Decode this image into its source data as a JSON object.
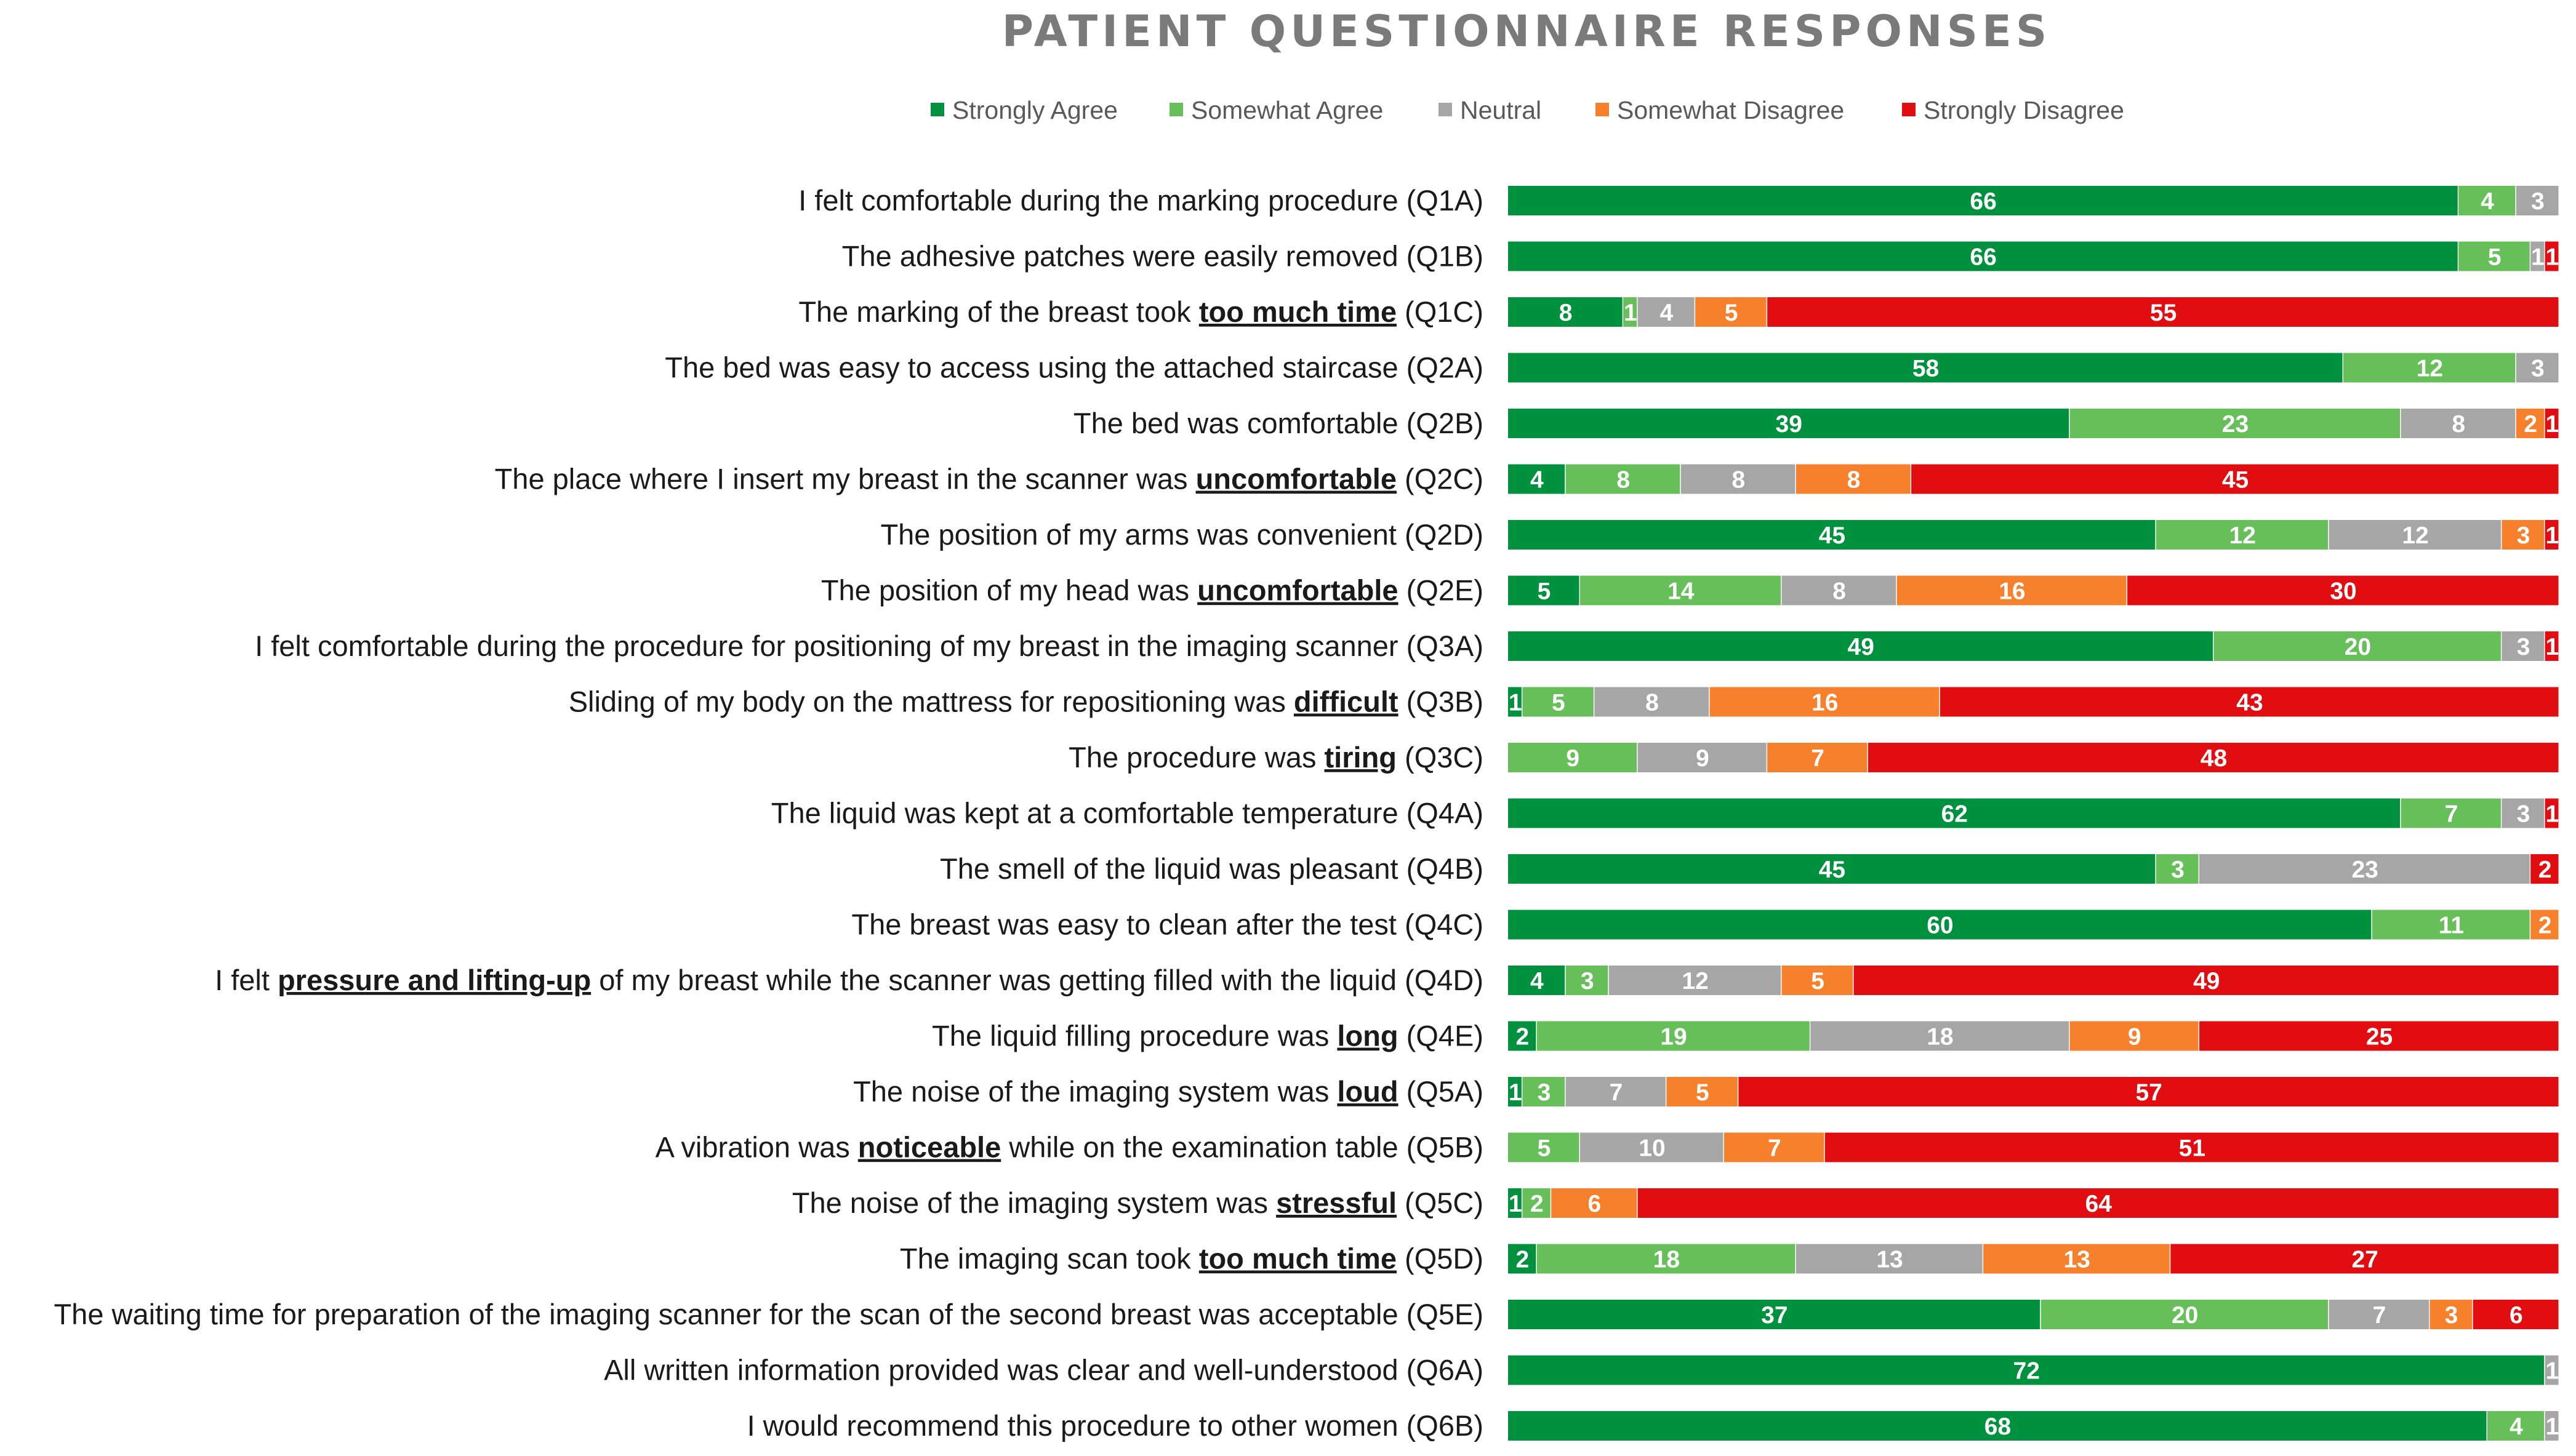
{
  "chart_data": {
    "type": "bar",
    "orientation": "horizontal",
    "stacked": true,
    "title": "PATIENT QUESTIONNAIRE RESPONSES",
    "xlabel": "",
    "ylabel": "",
    "legend_position": "top",
    "grid": false,
    "series": [
      {
        "name": "Strongly Agree",
        "color": "#00913f"
      },
      {
        "name": "Somewhat Agree",
        "color": "#67bf5a"
      },
      {
        "name": "Neutral",
        "color": "#a6a6a6"
      },
      {
        "name": "Somewhat Disagree",
        "color": "#f6802b"
      },
      {
        "name": "Strongly Disagree",
        "color": "#e20d11"
      }
    ],
    "categories": [
      {
        "parts": [
          {
            "t": "I felt comfortable during the marking procedure (Q1A)"
          }
        ],
        "values": [
          66,
          4,
          3,
          0,
          0
        ]
      },
      {
        "parts": [
          {
            "t": "The adhesive patches were easily removed (Q1B)"
          }
        ],
        "values": [
          66,
          5,
          1,
          0,
          1
        ]
      },
      {
        "parts": [
          {
            "t": "The marking of the breast took "
          },
          {
            "t": "too much time",
            "b": true
          },
          {
            "t": " (Q1C)"
          }
        ],
        "values": [
          8,
          1,
          4,
          5,
          55
        ]
      },
      {
        "parts": [
          {
            "t": "The bed was easy to access using the attached staircase (Q2A)"
          }
        ],
        "values": [
          58,
          12,
          3,
          0,
          0
        ]
      },
      {
        "parts": [
          {
            "t": "The bed was comfortable (Q2B)"
          }
        ],
        "values": [
          39,
          23,
          8,
          2,
          1
        ]
      },
      {
        "parts": [
          {
            "t": "The place where I insert my breast in the scanner was "
          },
          {
            "t": "uncomfortable",
            "b": true
          },
          {
            "t": " (Q2C)"
          }
        ],
        "values": [
          4,
          8,
          8,
          8,
          45
        ]
      },
      {
        "parts": [
          {
            "t": "The position of my arms was convenient (Q2D)"
          }
        ],
        "values": [
          45,
          12,
          12,
          3,
          1
        ]
      },
      {
        "parts": [
          {
            "t": "The position of my head was "
          },
          {
            "t": "uncomfortable",
            "b": true
          },
          {
            "t": " (Q2E)"
          }
        ],
        "values": [
          5,
          14,
          8,
          16,
          30
        ]
      },
      {
        "parts": [
          {
            "t": "I felt comfortable during the procedure for positioning of my breast in the imaging scanner (Q3A)"
          }
        ],
        "values": [
          49,
          20,
          3,
          0,
          1
        ]
      },
      {
        "parts": [
          {
            "t": "Sliding of my body on the mattress for repositioning was "
          },
          {
            "t": "difficult",
            "b": true
          },
          {
            "t": " (Q3B)"
          }
        ],
        "values": [
          1,
          5,
          8,
          16,
          43
        ]
      },
      {
        "parts": [
          {
            "t": "The procedure was "
          },
          {
            "t": "tiring",
            "b": true
          },
          {
            "t": " (Q3C)"
          }
        ],
        "values": [
          0,
          9,
          9,
          7,
          48
        ]
      },
      {
        "parts": [
          {
            "t": "The liquid was kept at a comfortable temperature (Q4A)"
          }
        ],
        "values": [
          62,
          7,
          3,
          0,
          1
        ]
      },
      {
        "parts": [
          {
            "t": "The smell of the liquid was pleasant (Q4B)"
          }
        ],
        "values": [
          45,
          3,
          23,
          0,
          2
        ]
      },
      {
        "parts": [
          {
            "t": "The breast was easy to clean after the test (Q4C)"
          }
        ],
        "values": [
          60,
          11,
          0,
          2,
          0
        ]
      },
      {
        "parts": [
          {
            "t": "I felt "
          },
          {
            "t": "pressure and lifting-up",
            "b": true
          },
          {
            "t": " of my breast while the scanner was getting filled with the liquid (Q4D)"
          }
        ],
        "values": [
          4,
          3,
          12,
          5,
          49
        ]
      },
      {
        "parts": [
          {
            "t": "The liquid filling procedure was "
          },
          {
            "t": "long",
            "b": true
          },
          {
            "t": " (Q4E)"
          }
        ],
        "values": [
          2,
          19,
          18,
          9,
          25
        ]
      },
      {
        "parts": [
          {
            "t": "The noise of the imaging system was "
          },
          {
            "t": "loud",
            "b": true
          },
          {
            "t": " (Q5A)"
          }
        ],
        "values": [
          1,
          3,
          7,
          5,
          57
        ]
      },
      {
        "parts": [
          {
            "t": "A vibration was "
          },
          {
            "t": "noticeable",
            "b": true
          },
          {
            "t": " while on the examination table (Q5B)"
          }
        ],
        "values": [
          0,
          5,
          10,
          7,
          51
        ]
      },
      {
        "parts": [
          {
            "t": "The noise of the imaging system was "
          },
          {
            "t": "stressful",
            "b": true
          },
          {
            "t": " (Q5C)"
          }
        ],
        "values": [
          1,
          2,
          0,
          6,
          64
        ]
      },
      {
        "parts": [
          {
            "t": "The imaging scan took "
          },
          {
            "t": "too much time",
            "b": true
          },
          {
            "t": " (Q5D)"
          }
        ],
        "values": [
          2,
          18,
          13,
          13,
          27
        ]
      },
      {
        "parts": [
          {
            "t": "The waiting time for preparation of the imaging scanner for the scan of the second breast was acceptable (Q5E)"
          }
        ],
        "values": [
          37,
          20,
          7,
          3,
          6
        ]
      },
      {
        "parts": [
          {
            "t": "All written information provided was clear and well-understood (Q6A)"
          }
        ],
        "values": [
          72,
          0,
          1,
          0,
          0
        ]
      },
      {
        "parts": [
          {
            "t": "I would recommend this procedure to other women (Q6B)"
          }
        ],
        "values": [
          68,
          4,
          1,
          0,
          0
        ]
      }
    ]
  }
}
